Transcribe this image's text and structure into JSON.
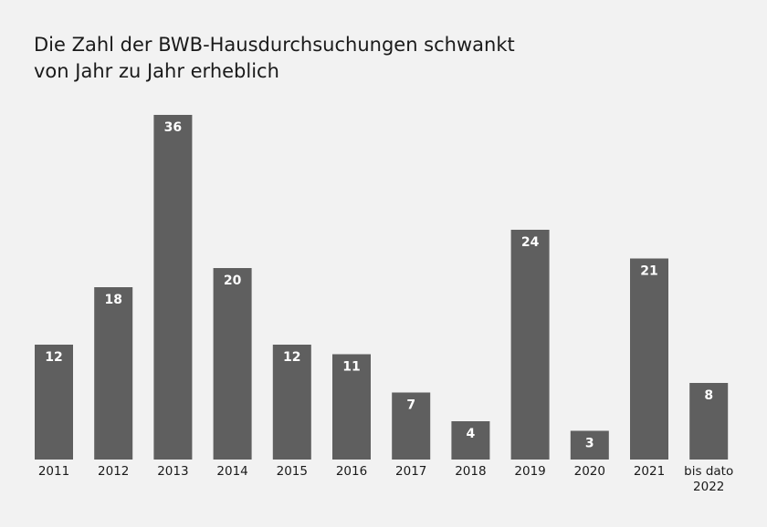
{
  "chart_data": {
    "type": "bar",
    "title_lines": [
      "Die Zahl der BWB-Hausdurchsuchungen schwankt",
      "von Jahr zu Jahr erheblich"
    ],
    "categories": [
      "2011",
      "2012",
      "2013",
      "2014",
      "2015",
      "2016",
      "2017",
      "2018",
      "2019",
      "2020",
      "2021",
      "bis dato 2022"
    ],
    "category_lines": [
      [
        "2011"
      ],
      [
        "2012"
      ],
      [
        "2013"
      ],
      [
        "2014"
      ],
      [
        "2015"
      ],
      [
        "2016"
      ],
      [
        "2017"
      ],
      [
        "2018"
      ],
      [
        "2019"
      ],
      [
        "2020"
      ],
      [
        "2021"
      ],
      [
        "bis dato",
        "2022"
      ]
    ],
    "values": [
      12,
      18,
      36,
      20,
      12,
      11,
      7,
      4,
      24,
      3,
      21,
      8
    ],
    "ylim": [
      0,
      36
    ],
    "grid": false,
    "legend": "none",
    "data_labels": "inside-top",
    "colors": {
      "bar": "#5f5f5f",
      "bar_label": "#ffffff",
      "background": "#f2f2f2",
      "text": "#1a1a1a"
    }
  }
}
